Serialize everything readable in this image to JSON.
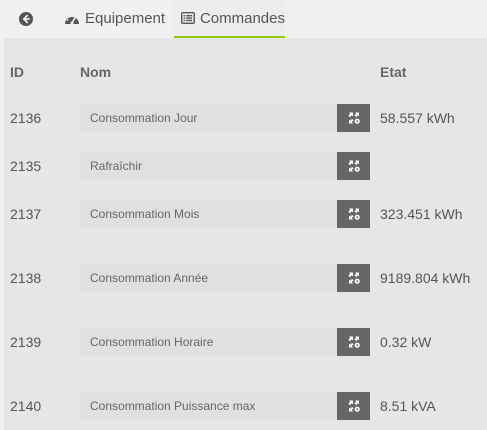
{
  "tabs": {
    "back_icon": "arrow-circle-left-icon",
    "equipement_label": "Equipement",
    "equipement_icon": "dashboard-gauge-icon",
    "commandes_label": "Commandes",
    "commandes_icon": "list-alt-icon",
    "active": "commandes",
    "accent_color": "#94ca02"
  },
  "table": {
    "headers": {
      "id": "ID",
      "nom": "Nom",
      "etat": "Etat"
    },
    "rows": [
      {
        "id": "2136",
        "name": "Consommation Jour",
        "state": "58.557 kWh"
      },
      {
        "id": "2135",
        "name": "Rafraîchir",
        "state": ""
      },
      {
        "id": "2137",
        "name": "Consommation Mois",
        "state": "323.451 kWh"
      },
      {
        "id": "2138",
        "name": "Consommation Année",
        "state": "9189.804 kWh"
      },
      {
        "id": "2139",
        "name": "Consommation Horaire",
        "state": "0.32 kW"
      },
      {
        "id": "2140",
        "name": "Consommation Puissance max",
        "state": "8.51 kVA"
      }
    ],
    "row_action_icon": "configure-icon"
  }
}
